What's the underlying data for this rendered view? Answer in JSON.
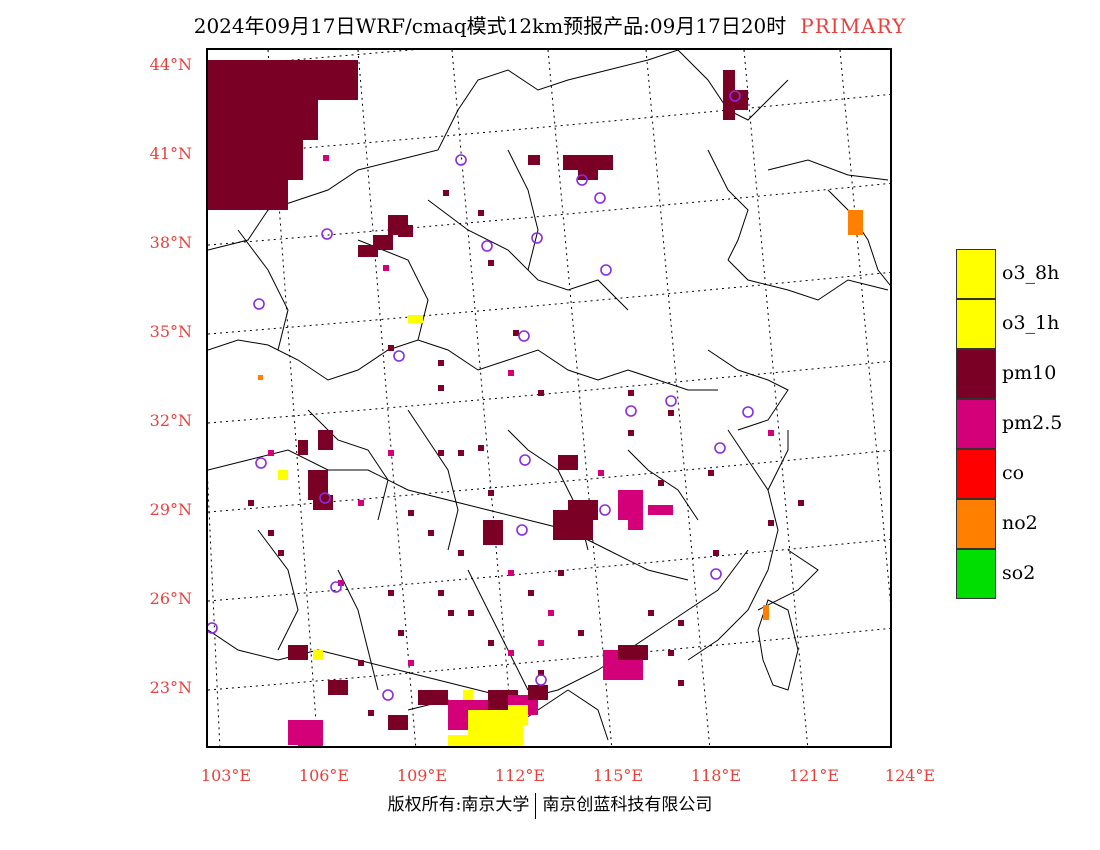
{
  "title": {
    "main": "2024年09月17日WRF/cmaq模式12km预报产品:09月17日20时",
    "tag": "PRIMARY"
  },
  "axes": {
    "lat_labels": [
      "44°N",
      "41°N",
      "38°N",
      "35°N",
      "32°N",
      "29°N",
      "26°N",
      "23°N"
    ],
    "lon_labels": [
      "103°E",
      "106°E",
      "109°E",
      "112°E",
      "115°E",
      "118°E",
      "121°E",
      "124°E"
    ]
  },
  "legend": [
    {
      "label": "o3_8h",
      "color": "#ffff00"
    },
    {
      "label": "o3_1h",
      "color": "#ffff00"
    },
    {
      "label": "pm10",
      "color": "#7a0026"
    },
    {
      "label": "pm2.5",
      "color": "#d4007a"
    },
    {
      "label": "co",
      "color": "#ff0000"
    },
    {
      "label": "no2",
      "color": "#ff7f00"
    },
    {
      "label": "so2",
      "color": "#00dd00"
    }
  ],
  "footer": {
    "left": "版权所有:南京大学",
    "right": "南京创蓝科技有限公司"
  },
  "colors": {
    "accent_red": "#e8403c",
    "pm10": "#7a0026",
    "pm25": "#d4007a",
    "o3": "#ffff00",
    "no2": "#ff7f00",
    "station_marker": "#8a2be2"
  }
}
